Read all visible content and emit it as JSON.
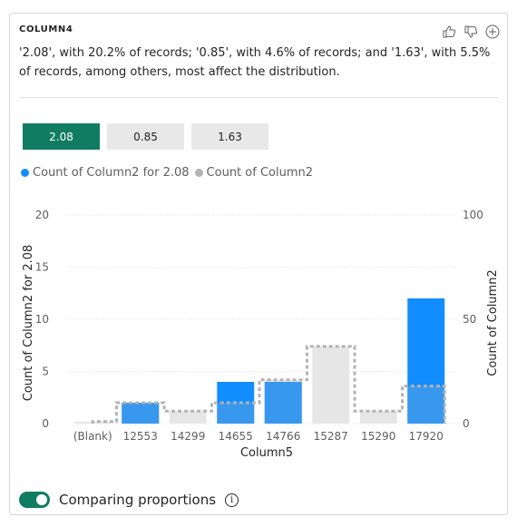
{
  "card": {
    "title": "COLUMN4",
    "summary": "'2.08', with 20.2% of records; '0.85', with 4.6% of records; and '1.63', with 5.5% of records, among others, most affect the distribution.",
    "icons": [
      "thumbs-up-icon",
      "thumbs-down-icon",
      "add-circle-icon"
    ]
  },
  "tabs": [
    {
      "label": "2.08",
      "active": true
    },
    {
      "label": "0.85",
      "active": false
    },
    {
      "label": "1.63",
      "active": false
    }
  ],
  "legend": [
    {
      "label": "Count of Column2 for 2.08",
      "color": "#118dff"
    },
    {
      "label": "Count of Column2",
      "color": "#b3b3b3"
    }
  ],
  "toggle": {
    "label": "Comparing proportions",
    "on": true
  },
  "colors": {
    "accent": "#107c61",
    "primary_bar": "#118dff",
    "background_bar": "#e6e6e6",
    "dashed_outline": "#b3b3b3"
  },
  "chart_data": {
    "type": "bar",
    "categories": [
      "(Blank)",
      "12553",
      "14299",
      "14655",
      "14766",
      "15287",
      "15290",
      "17920"
    ],
    "series": [
      {
        "name": "Count of Column2 for 2.08",
        "axis": "left",
        "values": [
          0,
          2,
          0,
          4,
          4,
          0,
          0,
          12
        ]
      },
      {
        "name": "Count of Column2",
        "axis": "right",
        "values": [
          1,
          10,
          6,
          10,
          21,
          37,
          6,
          18
        ]
      }
    ],
    "xlabel": "Column5",
    "ylabel": "Count of Column2 for 2.08",
    "y2label": "Count of Column2",
    "ylim": [
      0,
      20
    ],
    "y2lim": [
      0,
      100
    ],
    "yticks": [
      0,
      5,
      10,
      15,
      20
    ],
    "y2ticks": [
      0,
      50,
      100
    ],
    "grid": true
  }
}
